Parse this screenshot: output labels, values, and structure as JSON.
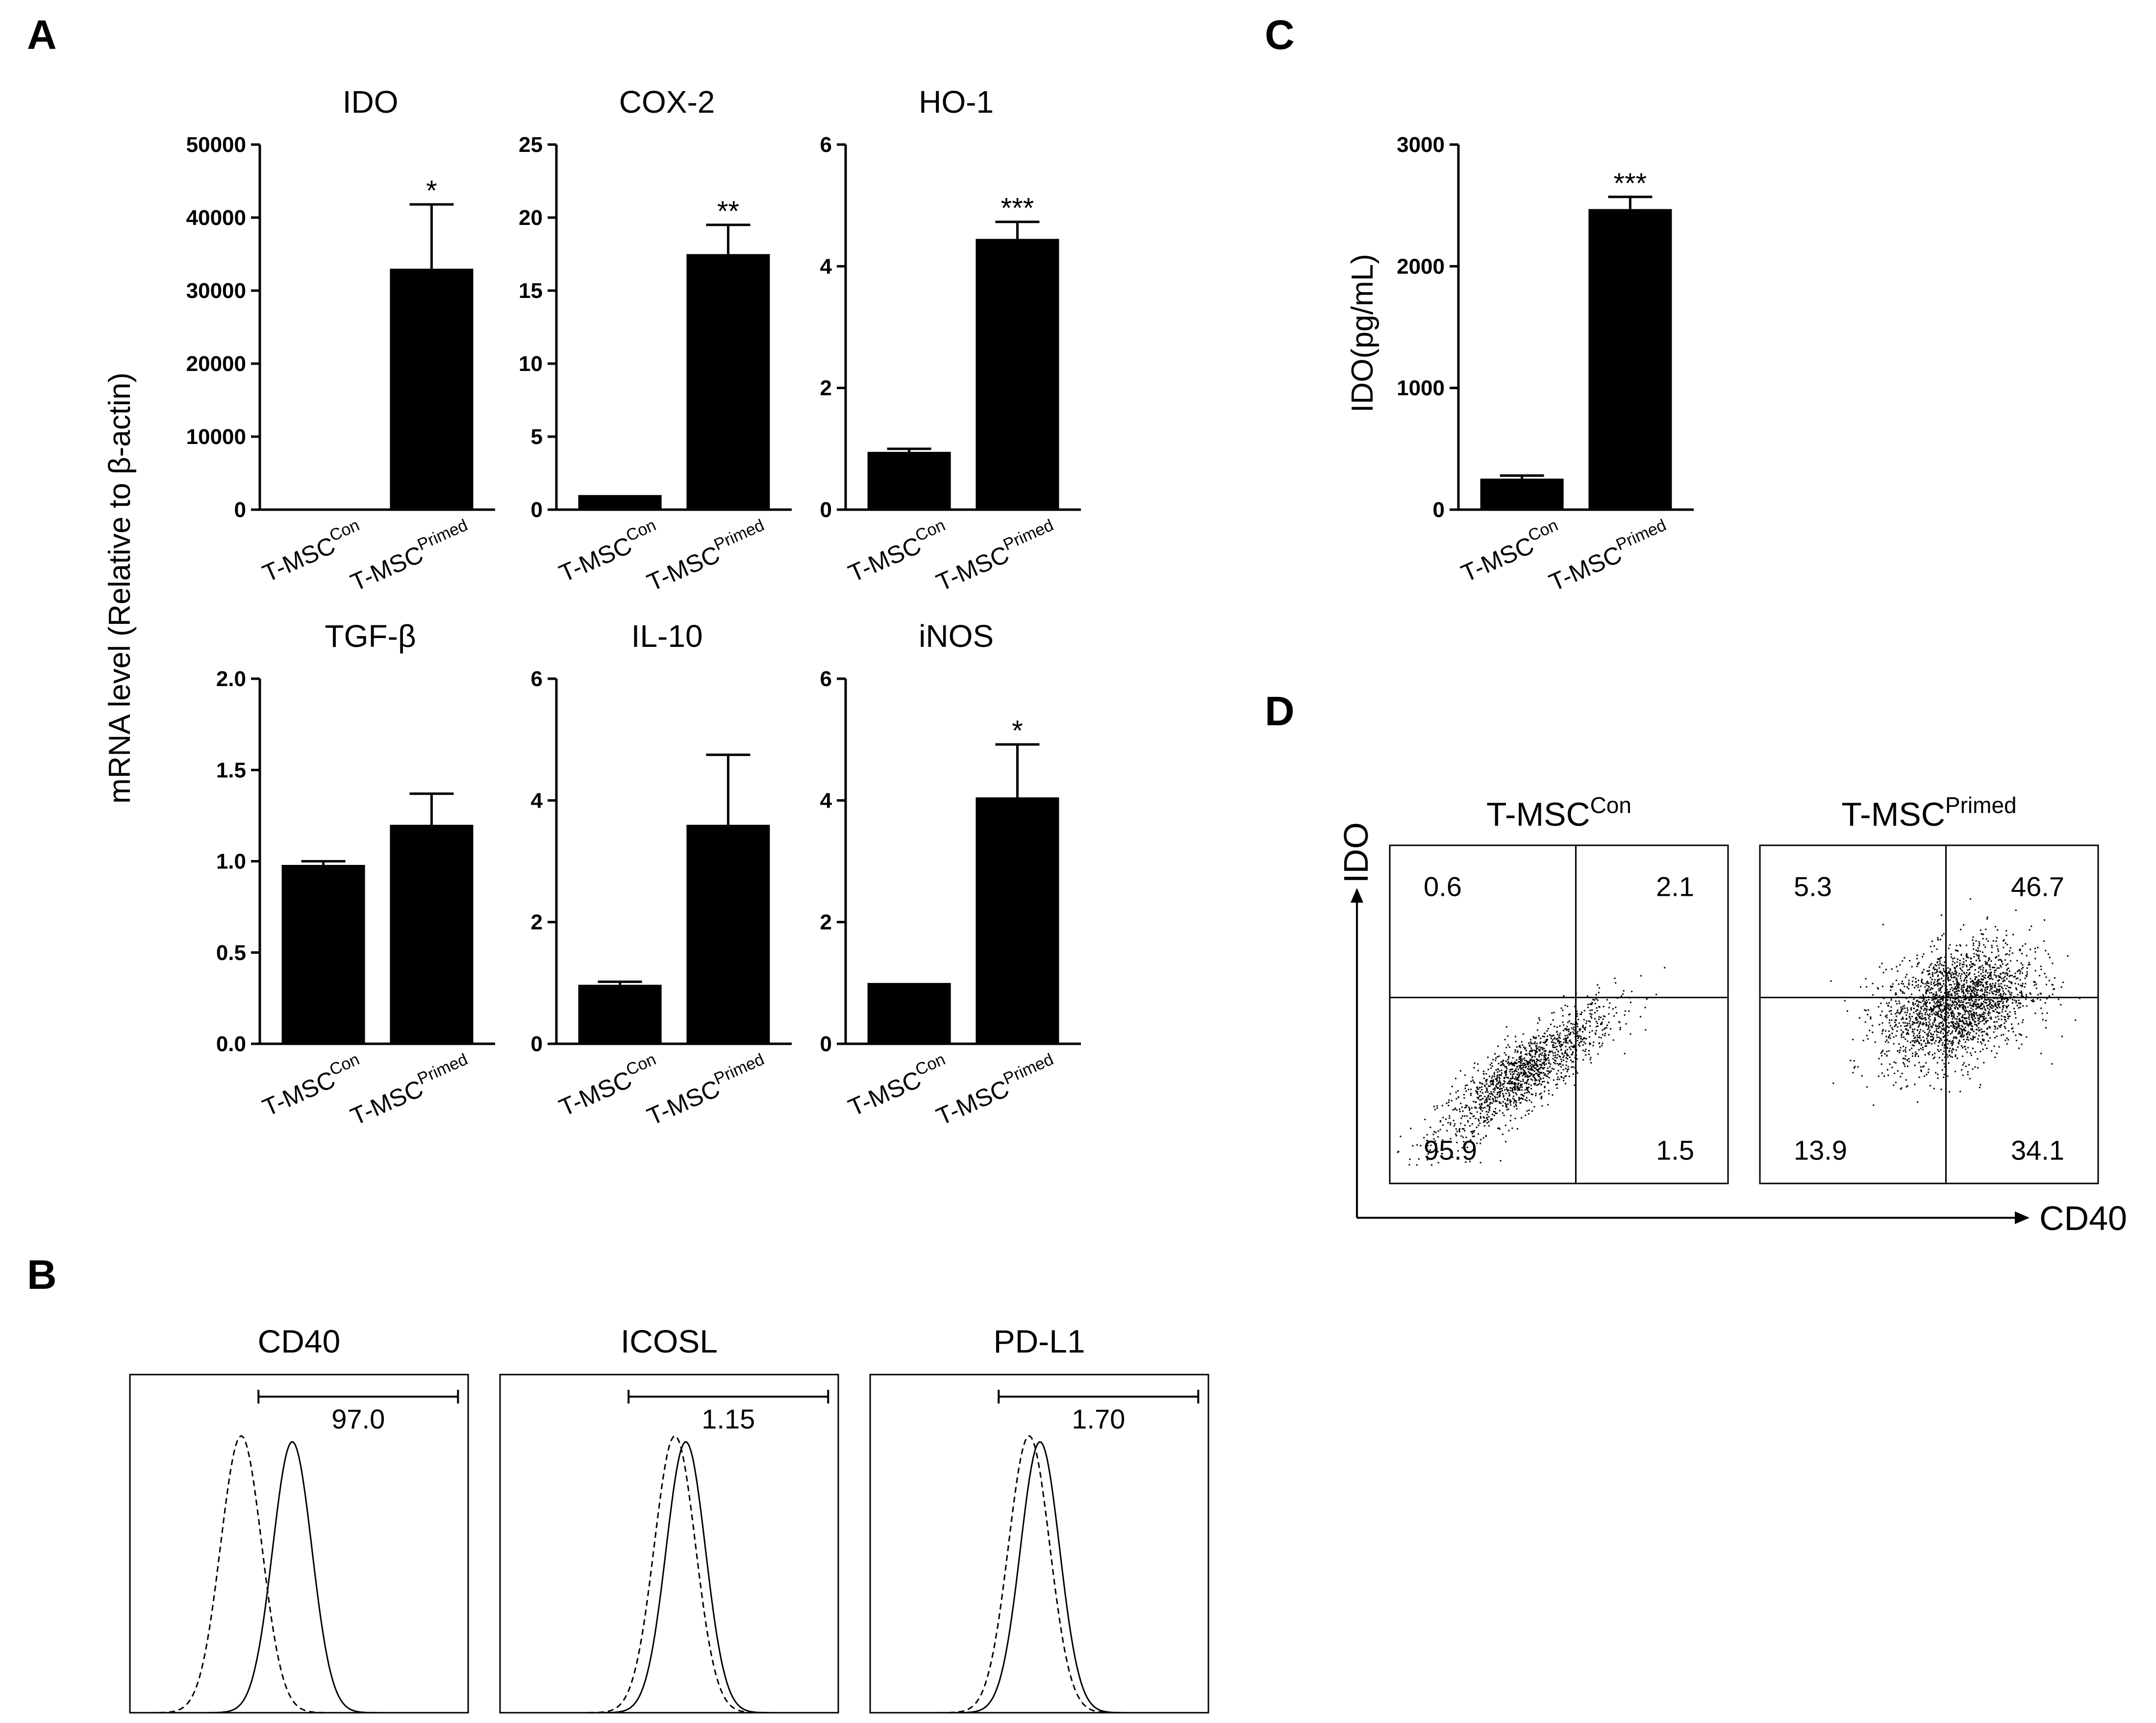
{
  "panels": {
    "a": "A",
    "b": "B",
    "c": "C",
    "d": "D"
  },
  "panel_a": {
    "ylabel": "mRNA level (Relative to β-actin)",
    "category_base": "T-MSC",
    "category_sups": [
      "Con",
      "Primed"
    ]
  },
  "chart_data": [
    {
      "id": "ido",
      "type": "bar",
      "title": "IDO",
      "categories": [
        "T-MSCCon",
        "T-MSCPrimed"
      ],
      "values": [
        1,
        33000
      ],
      "errors": [
        0,
        8800
      ],
      "significance": [
        "",
        "*"
      ],
      "ylim": [
        0,
        50000
      ],
      "yticks": [
        "0",
        "10000",
        "20000",
        "30000",
        "40000",
        "50000"
      ]
    },
    {
      "id": "cox2",
      "type": "bar",
      "title": "COX-2",
      "categories": [
        "T-MSCCon",
        "T-MSCPrimed"
      ],
      "values": [
        1.0,
        17.5
      ],
      "errors": [
        0,
        2.0
      ],
      "significance": [
        "",
        "**"
      ],
      "ylim": [
        0,
        25
      ],
      "yticks": [
        "0",
        "5",
        "10",
        "15",
        "20",
        "25"
      ]
    },
    {
      "id": "ho1",
      "type": "bar",
      "title": "HO-1",
      "categories": [
        "T-MSCCon",
        "T-MSCPrimed"
      ],
      "values": [
        0.95,
        4.45
      ],
      "errors": [
        0.05,
        0.28
      ],
      "significance": [
        "",
        "***"
      ],
      "ylim": [
        0,
        6
      ],
      "yticks": [
        "0",
        "2",
        "4",
        "6"
      ]
    },
    {
      "id": "tgfb",
      "type": "bar",
      "title": "TGF-β",
      "categories": [
        "T-MSCCon",
        "T-MSCPrimed"
      ],
      "values": [
        0.98,
        1.2
      ],
      "errors": [
        0.02,
        0.17
      ],
      "significance": [
        "",
        ""
      ],
      "ylim": [
        0,
        2.0
      ],
      "yticks": [
        "0.0",
        "0.5",
        "1.0",
        "1.5",
        "2.0"
      ]
    },
    {
      "id": "il10",
      "type": "bar",
      "title": "IL-10",
      "categories": [
        "T-MSCCon",
        "T-MSCPrimed"
      ],
      "values": [
        0.97,
        3.6
      ],
      "errors": [
        0.05,
        1.15
      ],
      "significance": [
        "",
        ""
      ],
      "ylim": [
        0,
        6
      ],
      "yticks": [
        "0",
        "2",
        "4",
        "6"
      ]
    },
    {
      "id": "inos",
      "type": "bar",
      "title": "iNOS",
      "categories": [
        "T-MSCCon",
        "T-MSCPrimed"
      ],
      "values": [
        1.0,
        4.05
      ],
      "errors": [
        0,
        0.87
      ],
      "significance": [
        "",
        "*"
      ],
      "ylim": [
        0,
        6
      ],
      "yticks": [
        "0",
        "2",
        "4",
        "6"
      ]
    },
    {
      "id": "ido_protein",
      "type": "bar",
      "title": "",
      "ylabel": "IDO(pg/mL)",
      "categories": [
        "T-MSCCon",
        "T-MSCPrimed"
      ],
      "values": [
        255,
        2470
      ],
      "errors": [
        25,
        100
      ],
      "significance": [
        "",
        "***"
      ],
      "ylim": [
        0,
        3000
      ],
      "yticks": [
        "0",
        "1000",
        "2000",
        "3000"
      ]
    }
  ],
  "panel_b": {
    "histograms": [
      {
        "title": "CD40",
        "gate_value": "97.0",
        "isotype_peak": 0.14,
        "stain_peak": 0.23
      },
      {
        "title": "ICOSL",
        "gate_value": "1.15",
        "isotype_peak": 0.22,
        "stain_peak": 0.23
      },
      {
        "title": "PD-L1",
        "gate_value": "1.70",
        "isotype_peak": 0.2,
        "stain_peak": 0.21
      }
    ]
  },
  "panel_d": {
    "x_axis": "CD40",
    "y_axis": "IDO",
    "plots": [
      {
        "title": "T-MSC",
        "sup": "Con",
        "quadrants": {
          "ul": "0.6",
          "ur": "2.1",
          "ll": "95.9",
          "lr": "1.5"
        }
      },
      {
        "title": "T-MSC",
        "sup": "Primed",
        "quadrants": {
          "ul": "5.3",
          "ur": "46.7",
          "ll": "13.9",
          "lr": "34.1"
        }
      }
    ]
  }
}
